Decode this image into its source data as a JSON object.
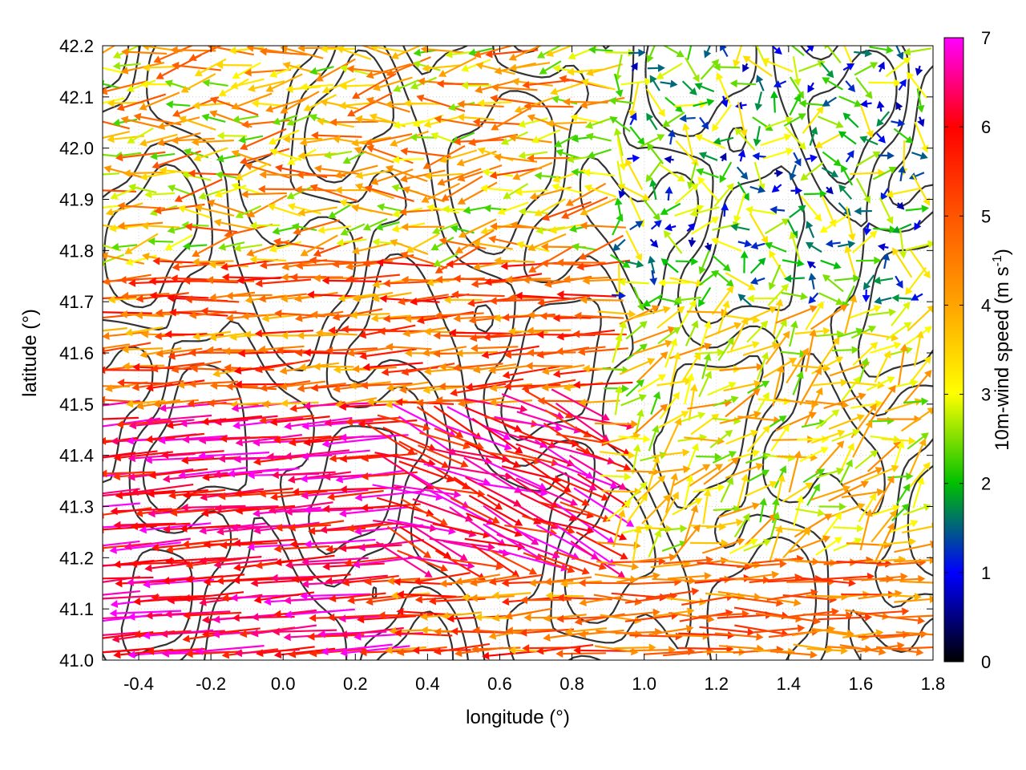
{
  "chart_data": {
    "type": "quiver",
    "xlabel": "longitude (°)",
    "ylabel": "latitude (°)",
    "xlim": [
      -0.5,
      1.8
    ],
    "ylim": [
      41.0,
      42.2
    ],
    "x_ticks": [
      "-0.4",
      "-0.2",
      "0.0",
      "0.2",
      "0.4",
      "0.6",
      "0.8",
      "1.0",
      "1.2",
      "1.4",
      "1.6",
      "1.8"
    ],
    "y_ticks": [
      "41.0",
      "41.1",
      "41.2",
      "41.3",
      "41.4",
      "41.5",
      "41.6",
      "41.7",
      "41.8",
      "41.9",
      "42.0",
      "42.1",
      "42.2"
    ],
    "grid": true,
    "colorbar": {
      "label_text": "10m-wind speed (m s",
      "label_sup": "-1",
      "label_close": ")",
      "range": [
        0,
        7
      ],
      "ticks": [
        "0",
        "1",
        "2",
        "3",
        "4",
        "5",
        "6",
        "7"
      ],
      "palette": [
        "#000000",
        "#0000ff",
        "#00c000",
        "#ffff00",
        "#ffa500",
        "#ff0000",
        "#ff00ff"
      ]
    },
    "contours": "terrain height isolines (dark grey)",
    "wind_regimes": [
      {
        "region": "west, lat 41.2-41.5",
        "direction": "from east",
        "speed": 6.5
      },
      {
        "region": "west, lat 41.5-41.8",
        "direction": "from east",
        "speed": 5.0
      },
      {
        "region": "west, lat 41.8-42.2",
        "direction": "from east",
        "speed": 4.0
      },
      {
        "region": "center, lon 0.3-0.9, lat 41.2-41.5",
        "direction": "from north-west",
        "speed": 6.5
      },
      {
        "region": "north-east, lat 41.7-42.2",
        "direction": "variable",
        "speed": 1.5
      },
      {
        "region": "south-east, lat 41.0-41.2",
        "direction": "from west",
        "speed": 4.5
      },
      {
        "region": "east, lat 41.3-41.6",
        "direction": "from south-west",
        "speed": 3.5
      }
    ]
  }
}
